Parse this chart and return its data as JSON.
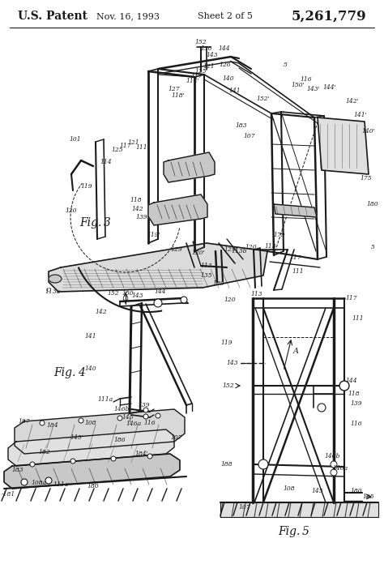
{
  "title_left": "U.S. Patent",
  "title_center": "Nov. 16, 1993",
  "title_sheet": "Sheet 2 of 5",
  "title_right": "5,261,779",
  "bg_color": "#ffffff",
  "line_color": "#1a1a1a",
  "fig_width": 4.74,
  "fig_height": 6.96,
  "dpi": 100
}
